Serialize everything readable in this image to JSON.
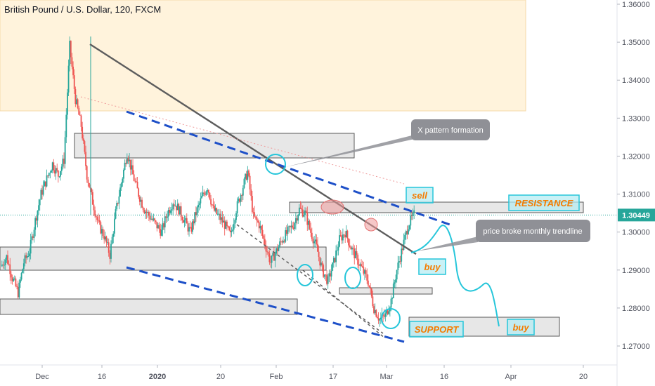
{
  "header": {
    "title": "British Pound / U.S. Dollar, 120, FXCM"
  },
  "current_price": {
    "label": "1.30449",
    "value": 1.30449
  },
  "colors": {
    "up": "#26a69a",
    "down": "#ef5350",
    "trendline": "#5d5d5d",
    "dashed_blue": "#1e50c8",
    "cyan": "#26c6da",
    "orange_text": "#f57c00",
    "current_price_line": "#26a69a",
    "resistance_zone_fill": "#fff3dc"
  },
  "annotations": {
    "x_pattern": "X pattern formation",
    "trend_break": "price broke monthly trendline",
    "sell": "sell",
    "buy_1": "buy",
    "buy_2": "buy",
    "resistance": "RESISTANCE",
    "support": "SUPPORT"
  },
  "chart_data": {
    "type": "line",
    "title": "British Pound / U.S. Dollar, 120, FXCM",
    "xlabel": "",
    "ylabel": "",
    "ylim": [
      1.265,
      1.361
    ],
    "x_ticks": [
      "Dec",
      "16",
      "2020",
      "20",
      "Feb",
      "17",
      "Mar",
      "16",
      "Apr",
      "20"
    ],
    "y_ticks": [
      "1.36000",
      "1.35000",
      "1.34000",
      "1.33000",
      "1.32000",
      "1.31000",
      "1.30000",
      "1.29000",
      "1.28000",
      "1.27000"
    ],
    "y_tick_values": [
      1.36,
      1.35,
      1.34,
      1.33,
      1.32,
      1.31,
      1.3,
      1.29,
      1.28,
      1.27
    ],
    "series": [
      {
        "values": [
          1.291,
          1.2935,
          1.288,
          1.284,
          1.292,
          1.295,
          1.303,
          1.31,
          1.314,
          1.318,
          1.315,
          1.319,
          1.349,
          1.335,
          1.328,
          1.315,
          1.308,
          1.302,
          1.299,
          1.294,
          1.305,
          1.313,
          1.321,
          1.315,
          1.31,
          1.306,
          1.304,
          1.302,
          1.3,
          1.305,
          1.308,
          1.306,
          1.303,
          1.3,
          1.305,
          1.309,
          1.312,
          1.306,
          1.304,
          1.302,
          1.299,
          1.306,
          1.311,
          1.316,
          1.304,
          1.302,
          1.297,
          1.292,
          1.295,
          1.298,
          1.3,
          1.302,
          1.306,
          1.305,
          1.3,
          1.296,
          1.29,
          1.287,
          1.292,
          1.298,
          1.3,
          1.296,
          1.293,
          1.29,
          1.287,
          1.28,
          1.277,
          1.278,
          1.282,
          1.29,
          1.296,
          1.302,
          1.3045
        ]
      }
    ]
  }
}
